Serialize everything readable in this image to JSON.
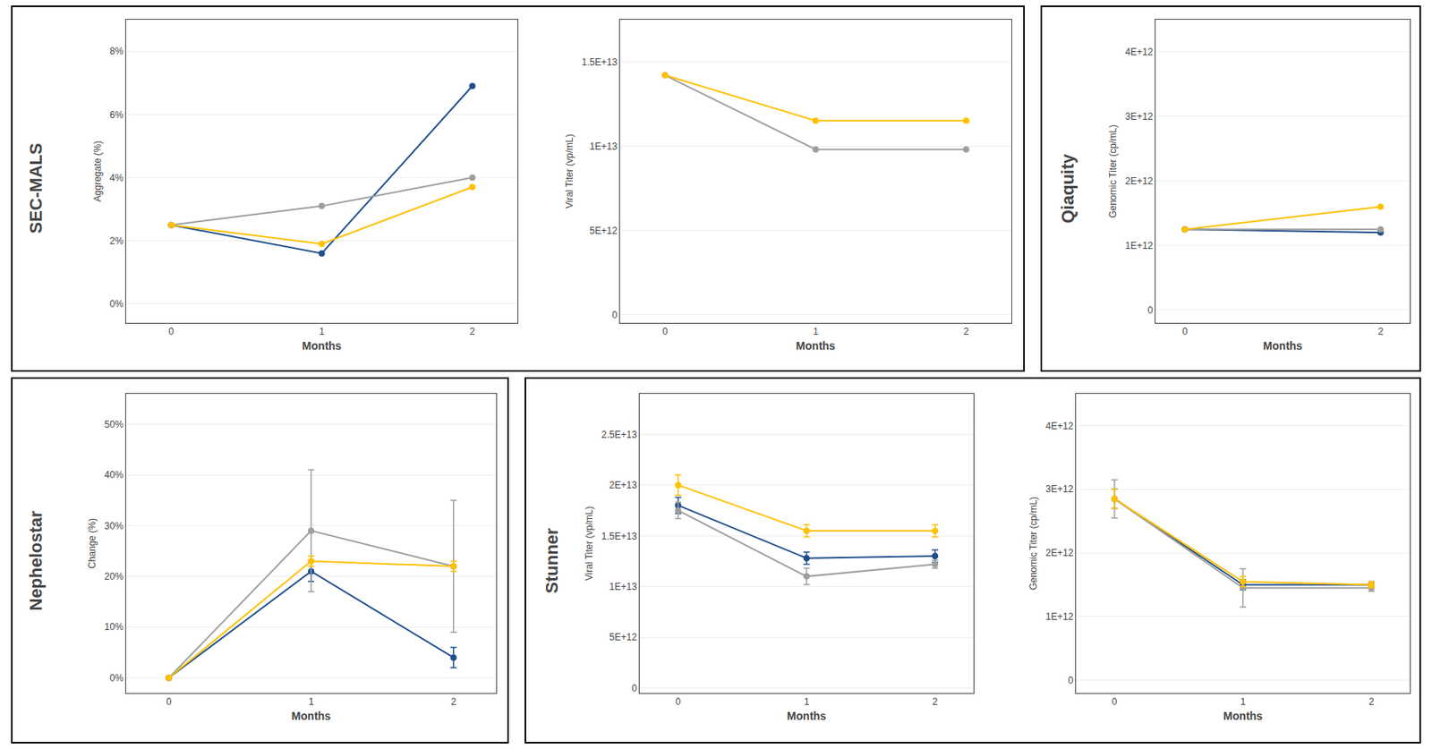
{
  "chart_data": [
    {
      "type": "line",
      "annotations": [
        "SEC-MALS"
      ],
      "xlabel": "Months",
      "ylabel": "Aggregate (%)",
      "x": [
        0,
        1,
        2
      ],
      "series": [
        {
          "color": "#1F4E8C",
          "values": [
            0.025,
            0.016,
            0.069
          ]
        },
        {
          "color": "#9E9E9E",
          "values": [
            0.025,
            0.031,
            0.04
          ]
        },
        {
          "color": "#FFC000",
          "values": [
            0.025,
            0.019,
            0.037
          ]
        }
      ],
      "xlim": [
        -0.3,
        2.3
      ],
      "xticks": [
        0,
        1,
        2
      ],
      "ylim": [
        -0.006,
        0.09
      ],
      "yticks": [
        {
          "value": 0.0,
          "label": "0%"
        },
        {
          "value": 0.02,
          "label": "2%"
        },
        {
          "value": 0.04,
          "label": "4%"
        },
        {
          "value": 0.06,
          "label": "6%"
        },
        {
          "value": 0.08,
          "label": "8%"
        }
      ],
      "grid": "y",
      "marker": "circle"
    },
    {
      "type": "line",
      "xlabel": "Months",
      "ylabel": "Viral Titer (vp/mL)",
      "x": [
        0,
        1,
        2
      ],
      "series": [
        {
          "color": "#9E9E9E",
          "values": [
            14200000000000.0,
            9800000000000.0,
            9800000000000.0
          ]
        },
        {
          "color": "#FFC000",
          "values": [
            14200000000000.0,
            11500000000000.0,
            11500000000000.0
          ]
        }
      ],
      "xlim": [
        -0.3,
        2.3
      ],
      "xticks": [
        0,
        1,
        2
      ],
      "ylim": [
        -500000000000.0,
        17500000000000.0
      ],
      "yticks": [
        0,
        {
          "value": 5000000000000.0,
          "label": "5E+12"
        },
        {
          "value": 10000000000000.0,
          "label": "1E+13"
        },
        {
          "value": 15000000000000.0,
          "label": "1.5E+13"
        }
      ],
      "grid": "y",
      "marker": "circle"
    },
    {
      "type": "line",
      "annotations": [
        "Qiaquity"
      ],
      "xlabel": "Months",
      "ylabel": "Genomic Titer (cp/mL)",
      "x": [
        0,
        2
      ],
      "series": [
        {
          "color": "#1F4E8C",
          "values": [
            1250000000000.0,
            1200000000000.0
          ]
        },
        {
          "color": "#9E9E9E",
          "values": [
            1250000000000.0,
            1250000000000.0
          ]
        },
        {
          "color": "#FFC000",
          "values": [
            1250000000000.0,
            1600000000000.0
          ]
        }
      ],
      "xlim": [
        -0.3,
        2.3
      ],
      "xticks": [
        0,
        2
      ],
      "ylim": [
        -200000000000.0,
        4500000000000.0
      ],
      "yticks": [
        0,
        {
          "value": 1000000000000.0,
          "label": "1E+12"
        },
        {
          "value": 2000000000000.0,
          "label": "2E+12"
        },
        {
          "value": 3000000000000.0,
          "label": "3E+12"
        },
        {
          "value": 4000000000000.0,
          "label": "4E+12"
        }
      ],
      "grid": "y",
      "marker": "circle"
    },
    {
      "type": "line",
      "annotations": [
        "Nephelostar"
      ],
      "xlabel": "Months",
      "ylabel": "Change (%)",
      "x": [
        0,
        1,
        2
      ],
      "series": [
        {
          "color": "#1F4E8C",
          "values": [
            0.0,
            0.21,
            0.04
          ],
          "errors": [
            0.0,
            0.02,
            0.02
          ]
        },
        {
          "color": "#9E9E9E",
          "values": [
            0.0,
            0.29,
            0.22
          ],
          "errors": [
            0.0,
            0.12,
            0.13
          ]
        },
        {
          "color": "#FFC000",
          "values": [
            0.0,
            0.23,
            0.22
          ],
          "errors": [
            0.0,
            0.01,
            0.01
          ]
        }
      ],
      "xlim": [
        -0.3,
        2.3
      ],
      "xticks": [
        0,
        1,
        2
      ],
      "ylim": [
        -0.03,
        0.56
      ],
      "yticks": [
        {
          "value": 0.0,
          "label": "0%"
        },
        {
          "value": 0.1,
          "label": "10%"
        },
        {
          "value": 0.2,
          "label": "20%"
        },
        {
          "value": 0.3,
          "label": "30%"
        },
        {
          "value": 0.4,
          "label": "40%"
        },
        {
          "value": 0.5,
          "label": "50%"
        }
      ],
      "grid": "y",
      "marker": "circle"
    },
    {
      "type": "line",
      "annotations": [
        "Stunner"
      ],
      "xlabel": "Months",
      "ylabel": "Viral Titer (vp/mL)",
      "x": [
        0,
        1,
        2
      ],
      "series": [
        {
          "color": "#1F4E8C",
          "values": [
            18000000000000.0,
            12800000000000.0,
            13000000000000.0
          ],
          "errors": [
            800000000000.0,
            600000000000.0,
            600000000000.0
          ]
        },
        {
          "color": "#9E9E9E",
          "values": [
            17500000000000.0,
            11000000000000.0,
            12200000000000.0
          ],
          "errors": [
            800000000000.0,
            800000000000.0,
            400000000000.0
          ]
        },
        {
          "color": "#FFC000",
          "values": [
            20000000000000.0,
            15500000000000.0,
            15500000000000.0
          ],
          "errors": [
            1000000000000.0,
            600000000000.0,
            600000000000.0
          ]
        }
      ],
      "xlim": [
        -0.3,
        2.3
      ],
      "xticks": [
        0,
        1,
        2
      ],
      "ylim": [
        -500000000000.0,
        29000000000000.0
      ],
      "yticks": [
        0,
        {
          "value": 5000000000000.0,
          "label": "5E+12"
        },
        {
          "value": 10000000000000.0,
          "label": "1E+13"
        },
        {
          "value": 15000000000000.0,
          "label": "1.5E+13"
        },
        {
          "value": 20000000000000.0,
          "label": "2E+13"
        },
        {
          "value": 25000000000000.0,
          "label": "2.5E+13"
        }
      ],
      "grid": "y",
      "marker": "circle"
    },
    {
      "type": "line",
      "xlabel": "Months",
      "ylabel": "Genomic Titer (cp/mL)",
      "x": [
        0,
        1,
        2
      ],
      "series": [
        {
          "color": "#1F4E8C",
          "values": [
            2850000000000.0,
            1500000000000.0,
            1500000000000.0
          ],
          "errors": [
            150000000000.0,
            80000000000.0,
            50000000000.0
          ]
        },
        {
          "color": "#9E9E9E",
          "values": [
            2850000000000.0,
            1450000000000.0,
            1450000000000.0
          ],
          "errors": [
            300000000000.0,
            300000000000.0,
            50000000000.0
          ]
        },
        {
          "color": "#FFC000",
          "values": [
            2850000000000.0,
            1550000000000.0,
            1500000000000.0
          ],
          "errors": [
            150000000000.0,
            80000000000.0,
            50000000000.0
          ]
        }
      ],
      "xlim": [
        -0.3,
        2.3
      ],
      "xticks": [
        0,
        1,
        2
      ],
      "ylim": [
        -200000000000.0,
        4500000000000.0
      ],
      "yticks": [
        0,
        {
          "value": 1000000000000.0,
          "label": "1E+12"
        },
        {
          "value": 2000000000000.0,
          "label": "2E+12"
        },
        {
          "value": 3000000000000.0,
          "label": "3E+12"
        },
        {
          "value": 4000000000000.0,
          "label": "4E+12"
        }
      ],
      "grid": "y",
      "marker": "circle"
    }
  ]
}
